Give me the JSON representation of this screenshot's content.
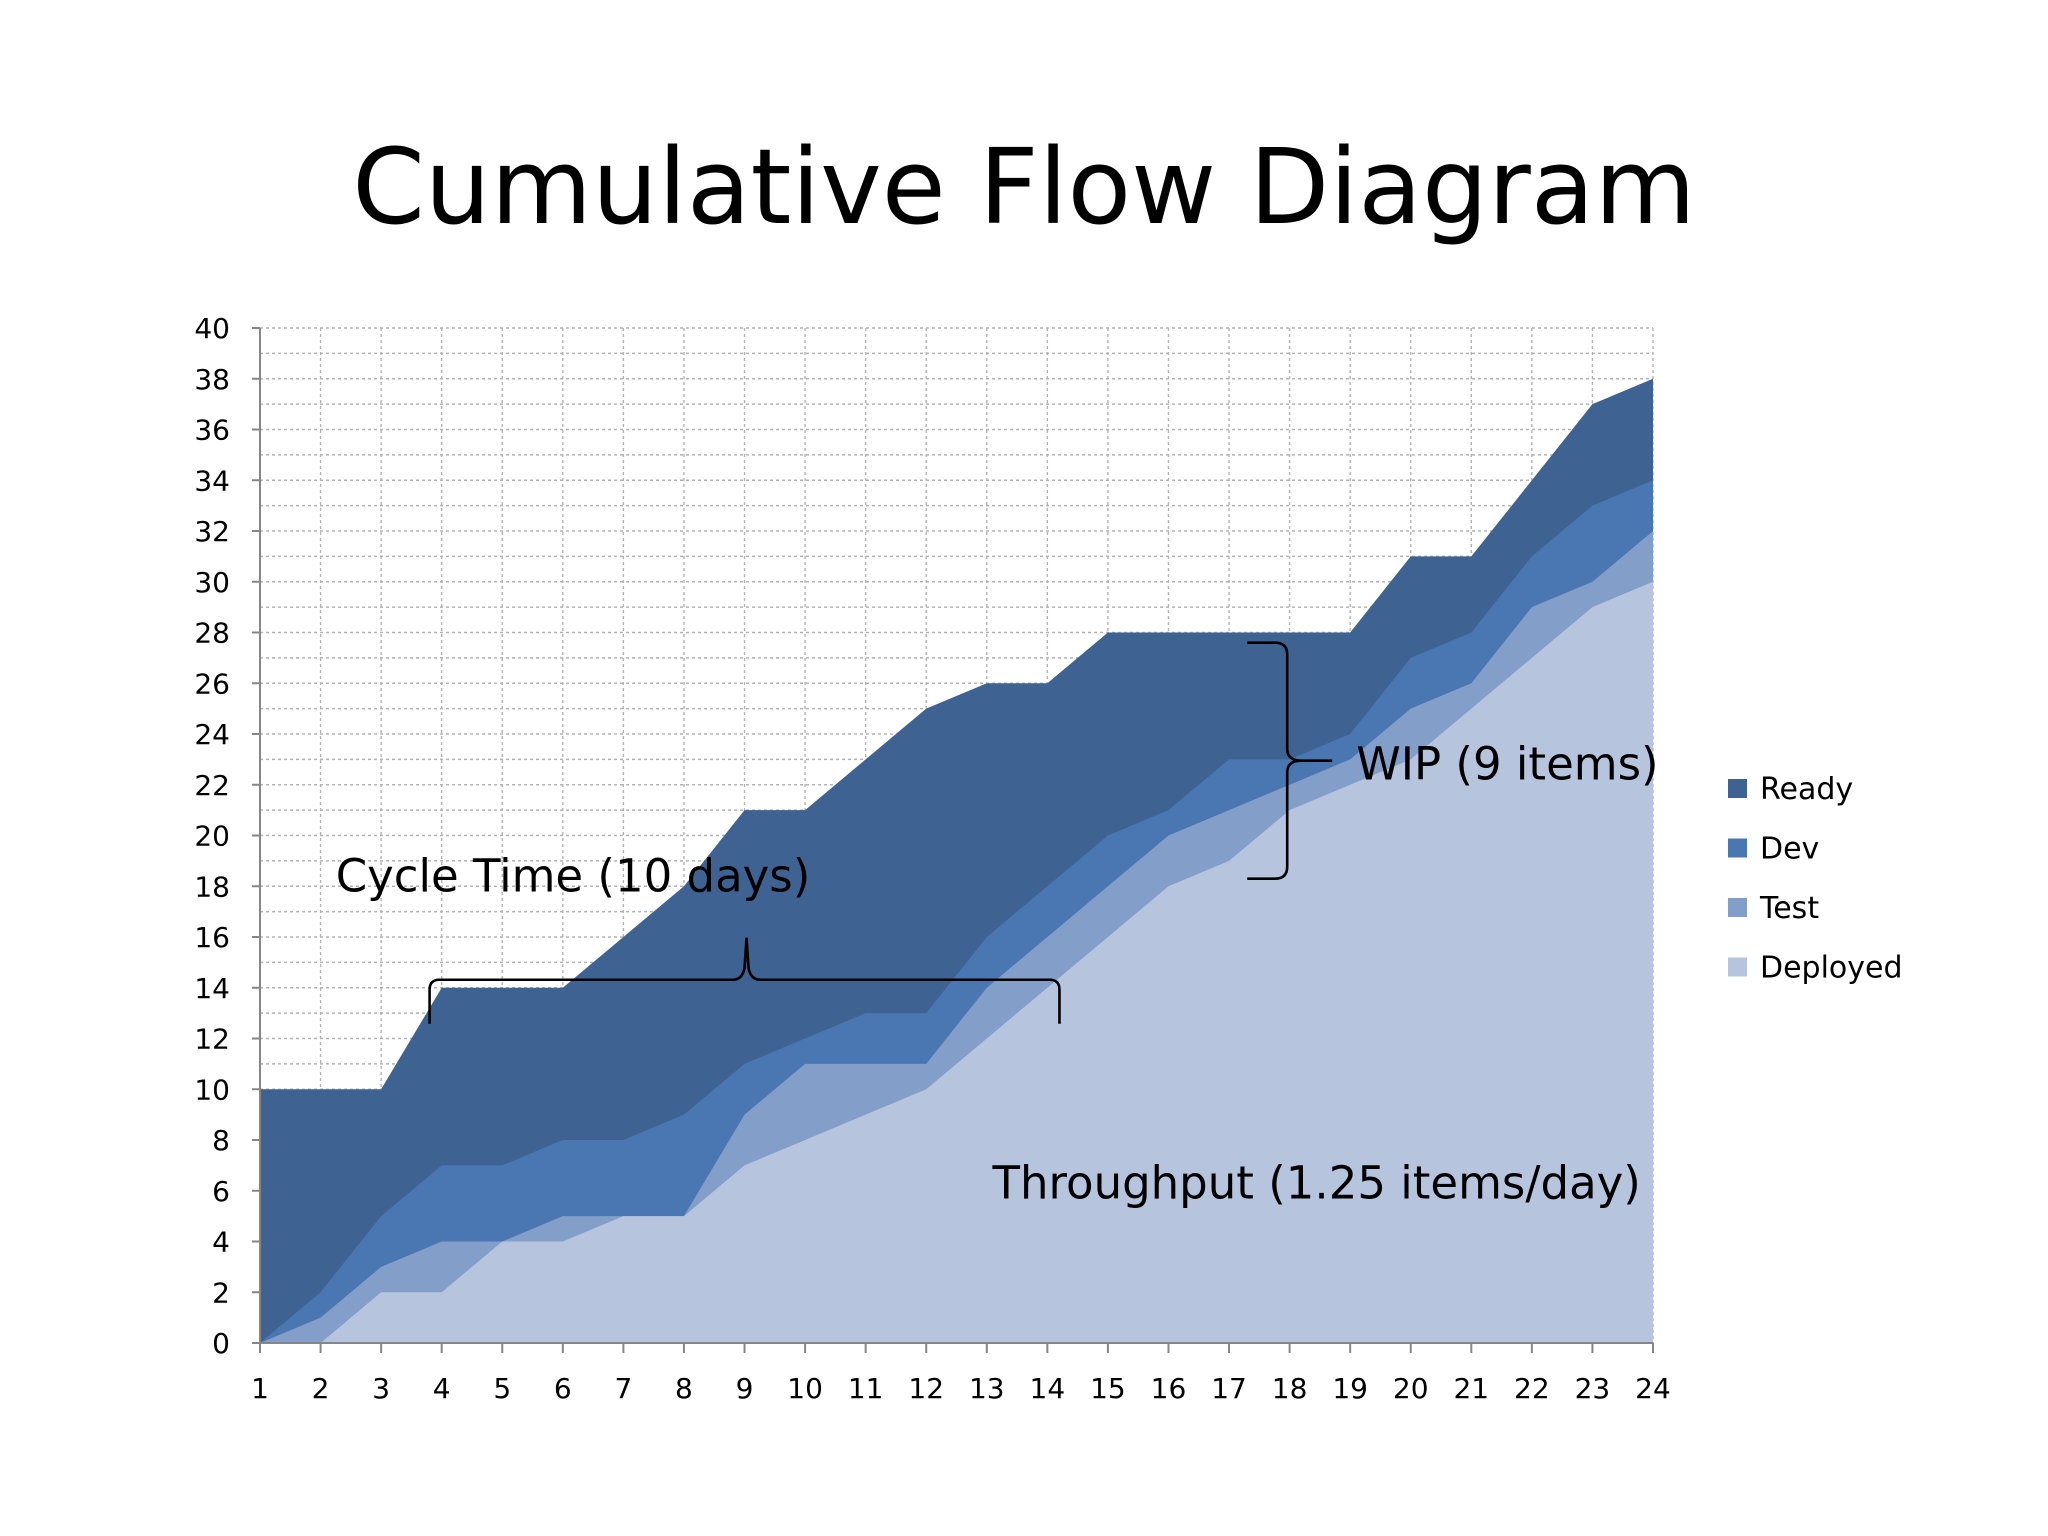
{
  "page": {
    "title": "Cumulative Flow Diagram"
  },
  "chart_data": {
    "type": "area",
    "title": "Cumulative Flow Diagram",
    "xlabel": "",
    "ylabel": "",
    "x": [
      1,
      2,
      3,
      4,
      5,
      6,
      7,
      8,
      9,
      10,
      11,
      12,
      13,
      14,
      15,
      16,
      17,
      18,
      19,
      20,
      21,
      22,
      23,
      24
    ],
    "xlim": [
      1,
      24
    ],
    "ylim": [
      0,
      40
    ],
    "y_tick_step": 2,
    "grid": true,
    "stacking": "cumulative",
    "series": [
      {
        "name": "Deployed",
        "color": "#b7c4de",
        "values": [
          0,
          0,
          2,
          2,
          4,
          4,
          5,
          5,
          7,
          8,
          9,
          10,
          12,
          14,
          16,
          18,
          19,
          21,
          22,
          23,
          25,
          27,
          29,
          30
        ]
      },
      {
        "name": "Test",
        "color": "#829ec9",
        "values": [
          0,
          1,
          3,
          4,
          4,
          5,
          5,
          5,
          9,
          11,
          11,
          11,
          14,
          16,
          18,
          20,
          21,
          22,
          23,
          25,
          26,
          29,
          30,
          32
        ]
      },
      {
        "name": "Dev",
        "color": "#4a77b1",
        "values": [
          0,
          2,
          5,
          7,
          7,
          8,
          8,
          9,
          11,
          12,
          13,
          13,
          16,
          18,
          20,
          21,
          23,
          23,
          24,
          27,
          28,
          31,
          33,
          34
        ]
      },
      {
        "name": "Ready",
        "color": "#3e6393",
        "values": [
          10,
          10,
          10,
          14,
          14,
          14,
          16,
          18,
          21,
          21,
          23,
          25,
          26,
          26,
          28,
          28,
          28,
          28,
          28,
          31,
          31,
          34,
          37,
          38
        ]
      }
    ],
    "legend": {
      "placement": "right",
      "order": [
        "Ready",
        "Dev",
        "Test",
        "Deployed"
      ]
    },
    "annotations": [
      {
        "name": "cycle-time",
        "text": "Cycle Time (10 days)",
        "bracket": "horizontal",
        "x_range": [
          3.8,
          14.2
        ],
        "y": 14,
        "text_x": 2.25,
        "text_y": 17.8
      },
      {
        "name": "wip",
        "text": "WIP (9 items)",
        "bracket": "vertical",
        "x": 17.3,
        "y_range": [
          18.3,
          27.6
        ],
        "text_x": 19.1,
        "text_y": 22.2
      },
      {
        "name": "throughput",
        "text": "Throughput (1.25 items/day)",
        "text_x": 23.8,
        "text_y": 5.7,
        "anchor": "end"
      }
    ]
  }
}
